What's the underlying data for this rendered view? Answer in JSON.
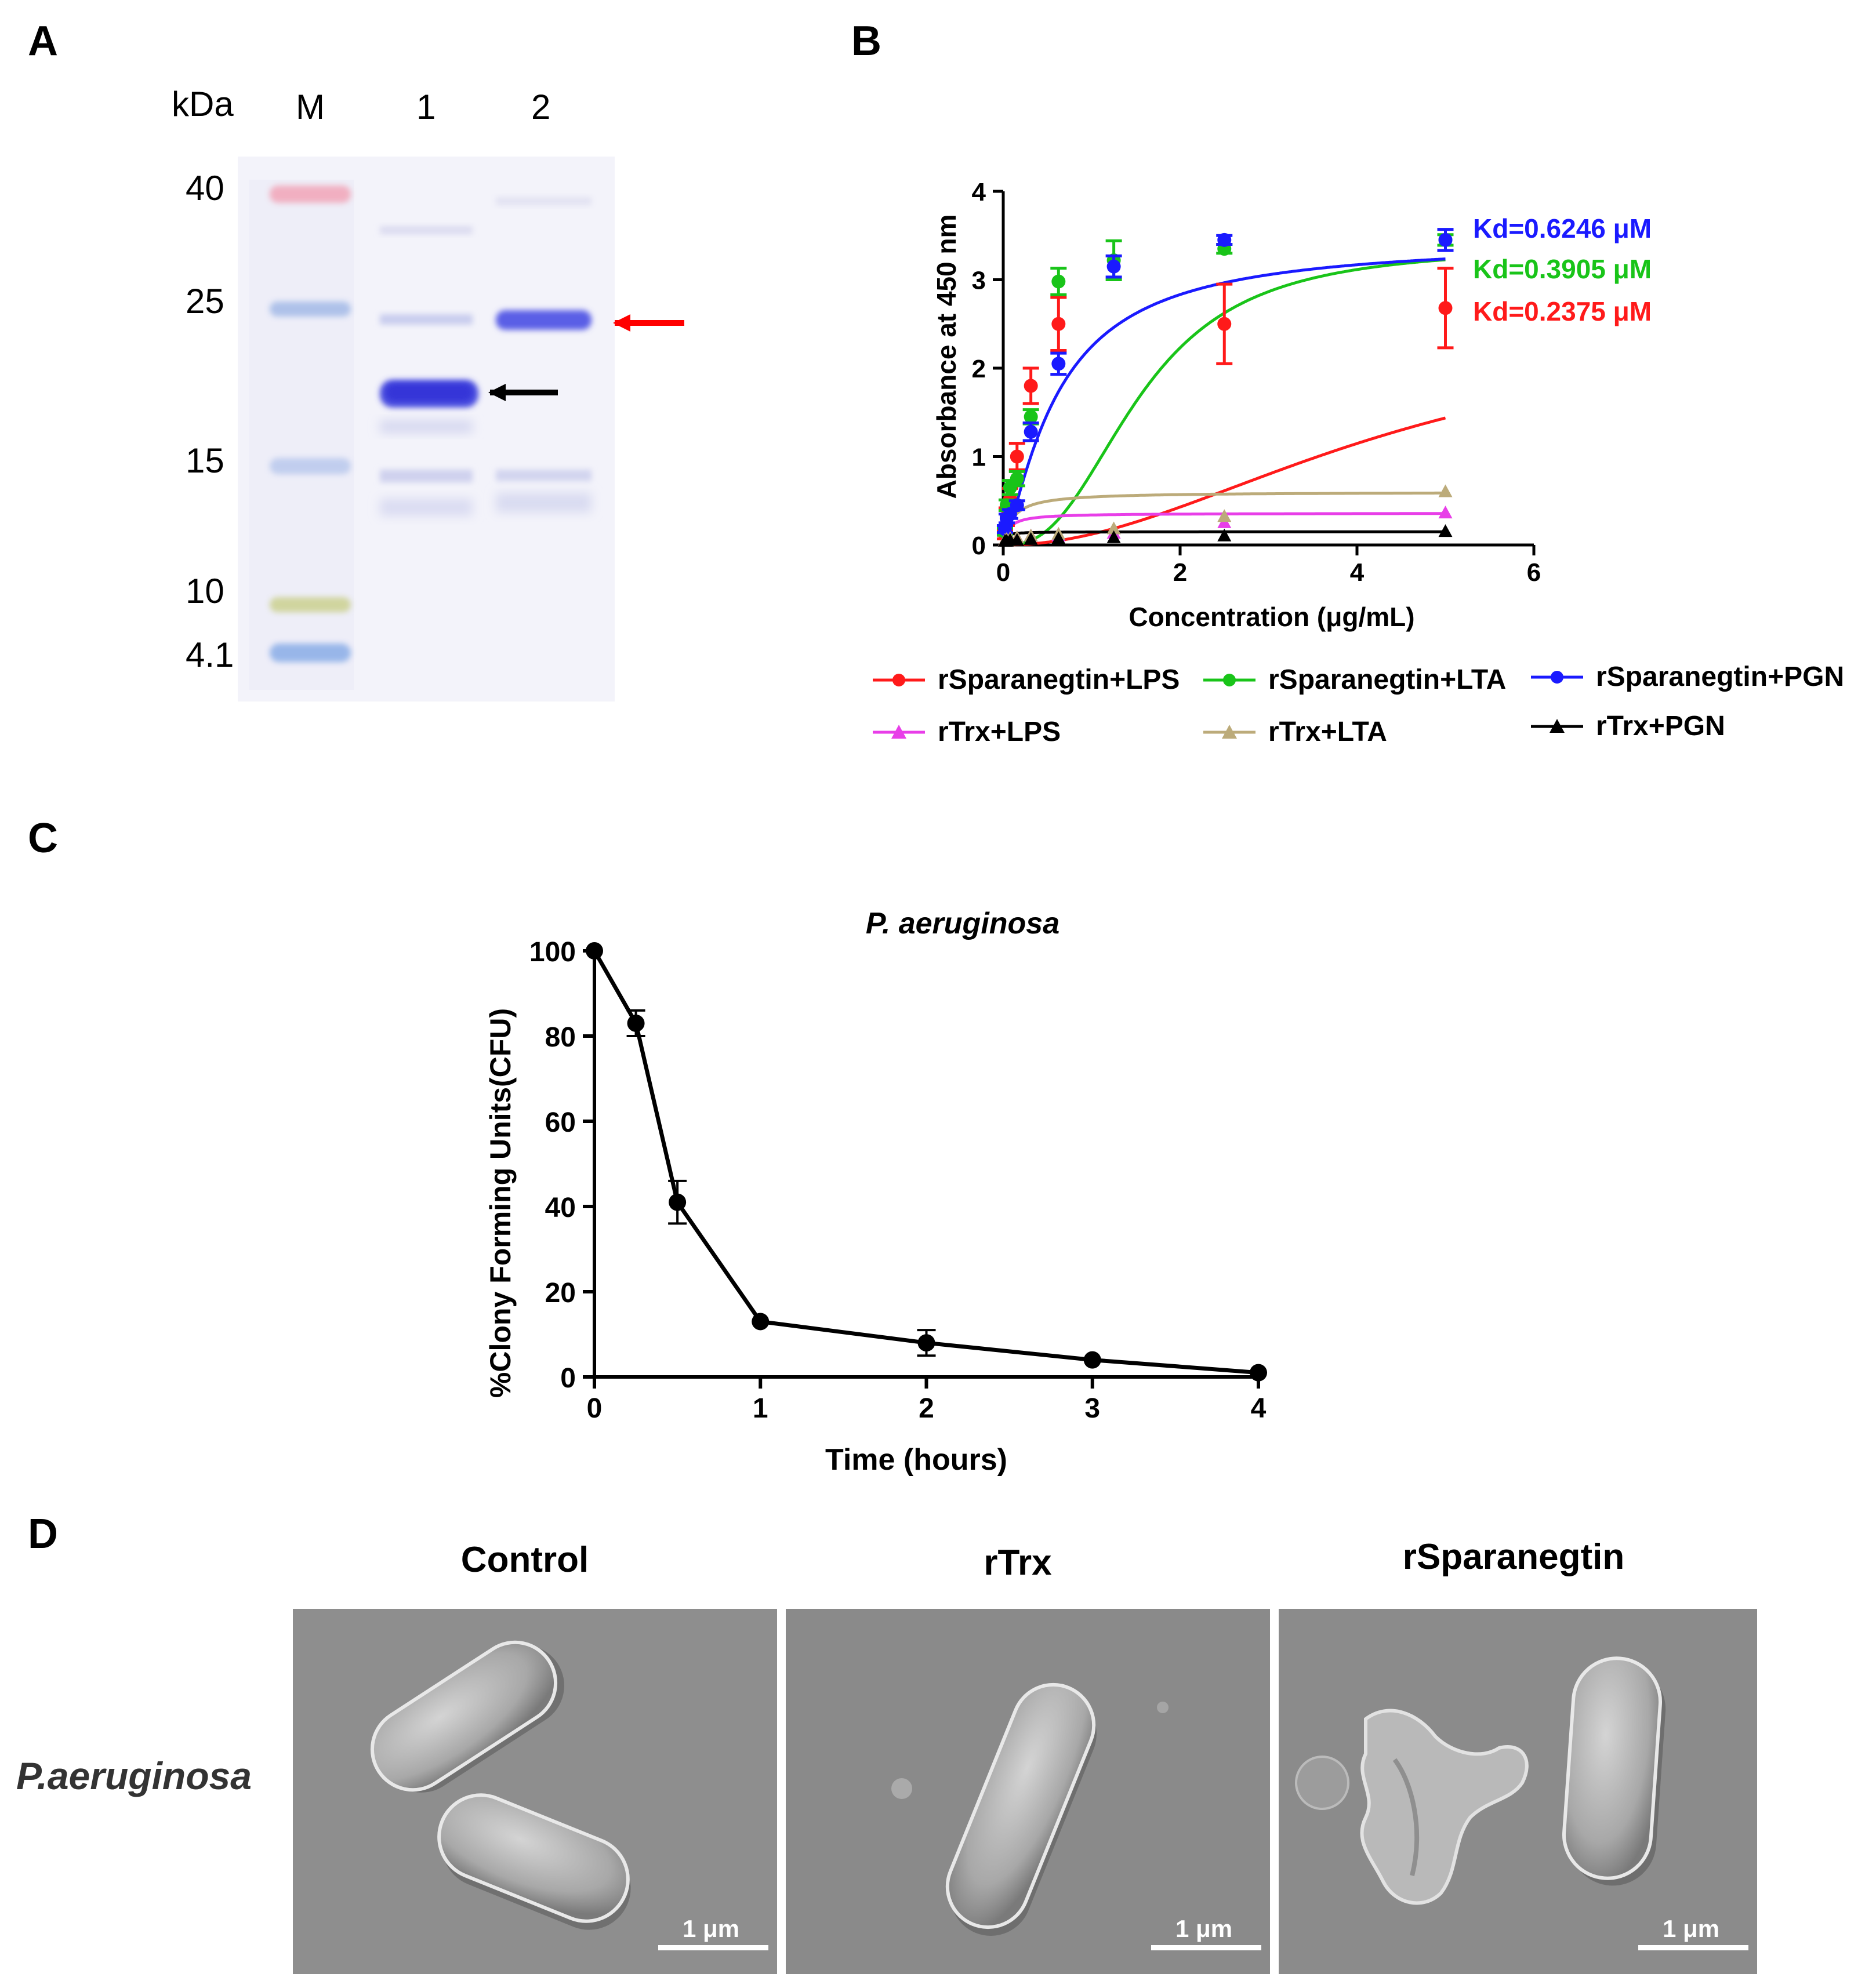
{
  "panels": {
    "a": {
      "letter": "A"
    },
    "b": {
      "letter": "B"
    },
    "c": {
      "letter": "C"
    },
    "d": {
      "letter": "D"
    }
  },
  "gel": {
    "unit_label": "kDa",
    "lanes": [
      "M",
      "1",
      "2"
    ],
    "markers": [
      "40",
      "25",
      "15",
      "10",
      "4.1"
    ],
    "arrow_colors": {
      "lane1": "#000000",
      "lane2": "#ff0000"
    }
  },
  "chart_data": [
    {
      "type": "line",
      "panel": "B",
      "xlabel": "Concentration (μg/mL)",
      "ylabel": "Absorbance at 450 nm",
      "xlim": [
        0,
        6
      ],
      "ylim": [
        0,
        4
      ],
      "xticks": [
        "0",
        "2",
        "4",
        "6"
      ],
      "yticks": [
        "0",
        "1",
        "2",
        "3",
        "4"
      ],
      "x": [
        0.0195,
        0.039,
        0.078,
        0.156,
        0.3125,
        0.625,
        1.25,
        2.5,
        5
      ],
      "series": [
        {
          "name": "rSparanegtin+LPS",
          "color": "#ff1a1a",
          "marker": "circle",
          "values": [
            0.12,
            0.32,
            0.52,
            1.0,
            1.8,
            2.5,
            null,
            2.5,
            2.68
          ],
          "err": [
            0.05,
            0.1,
            0.12,
            0.15,
            0.2,
            0.3,
            null,
            0.45,
            0.45
          ]
        },
        {
          "name": "rSparanegtin+LTA",
          "color": "#19c419",
          "marker": "circle",
          "values": [
            0.15,
            0.45,
            0.65,
            0.75,
            1.45,
            2.98,
            3.22,
            3.35,
            3.45
          ],
          "err": [
            0.04,
            0.06,
            0.08,
            0.08,
            0.08,
            0.15,
            0.22,
            0.05,
            0.06
          ]
        },
        {
          "name": "rSparanegtin+PGN",
          "color": "#1a1aff",
          "marker": "circle",
          "values": [
            0.18,
            0.3,
            0.35,
            0.45,
            1.28,
            2.05,
            3.15,
            3.45,
            3.45
          ],
          "err": [
            0.04,
            0.05,
            0.05,
            0.05,
            0.1,
            0.12,
            0.12,
            0.05,
            0.12
          ]
        },
        {
          "name": "rTrx+LPS",
          "color": "#e83ee8",
          "marker": "triangle",
          "values": [
            0.05,
            0.06,
            0.07,
            0.08,
            0.1,
            0.1,
            0.13,
            0.25,
            0.36
          ]
        },
        {
          "name": "rTrx+LTA",
          "color": "#bcab7a",
          "marker": "triangle",
          "values": [
            0.05,
            0.06,
            0.07,
            0.08,
            0.1,
            0.12,
            0.18,
            0.32,
            0.6
          ]
        },
        {
          "name": "rTrx+PGN",
          "color": "#000000",
          "marker": "triangle",
          "values": [
            0.04,
            0.04,
            0.05,
            0.05,
            0.06,
            0.07,
            0.08,
            0.1,
            0.15
          ]
        }
      ],
      "fits": [
        {
          "series": "rSparanegtin+LPS",
          "color": "#ff1a1a",
          "top": 2.6,
          "k": 4.5,
          "n": 2.0
        },
        {
          "series": "rSparanegtin+LTA",
          "color": "#19c419",
          "top": 3.38,
          "k": 1.55,
          "n": 2.6
        },
        {
          "series": "rSparanegtin+PGN",
          "color": "#1a1aff",
          "top": 3.45,
          "k": 0.62,
          "n": 1.3
        },
        {
          "series": "rTrx+LPS",
          "color": "#e83ee8",
          "top": 0.36,
          "k": 0.062,
          "n": 1
        },
        {
          "series": "rTrx+LTA",
          "color": "#bcab7a",
          "top": 0.6,
          "k": 0.106,
          "n": 1
        },
        {
          "series": "rTrx+PGN",
          "color": "#000000",
          "top": 0.15,
          "k": 0.022,
          "n": 1
        }
      ],
      "annotations": [
        {
          "text": "Kd=0.6246 μM",
          "color": "#1a1aff"
        },
        {
          "text": "Kd=0.3905 μM",
          "color": "#19c419"
        },
        {
          "text": "Kd=0.2375 μM",
          "color": "#ff1a1a"
        }
      ]
    },
    {
      "type": "line",
      "panel": "C",
      "title": "P. aeruginosa",
      "xlabel": "Time (hours)",
      "ylabel": "%Clony Forming Units(CFU)",
      "xlim": [
        0,
        4
      ],
      "ylim": [
        0,
        100
      ],
      "xticks": [
        "0",
        "1",
        "2",
        "3",
        "4"
      ],
      "yticks": [
        "0",
        "20",
        "40",
        "60",
        "80",
        "100"
      ],
      "x": [
        0,
        0.25,
        0.5,
        1,
        2,
        3,
        4
      ],
      "values": [
        100,
        83,
        41,
        13,
        8,
        4,
        1
      ],
      "err": [
        0,
        3,
        5,
        0,
        3,
        0,
        0
      ],
      "color": "#000000"
    }
  ],
  "legend": [
    "rSparanegtin+LPS",
    "rSparanegtin+LTA",
    "rSparanegtin+PGN",
    "rTrx+LPS",
    "rTrx+LTA",
    "rTrx+PGN"
  ],
  "sem": {
    "row_label": "P.aeruginosa",
    "columns": [
      "Control",
      "rTrx",
      "rSparanegtin"
    ],
    "scale_label": "1 μm"
  }
}
